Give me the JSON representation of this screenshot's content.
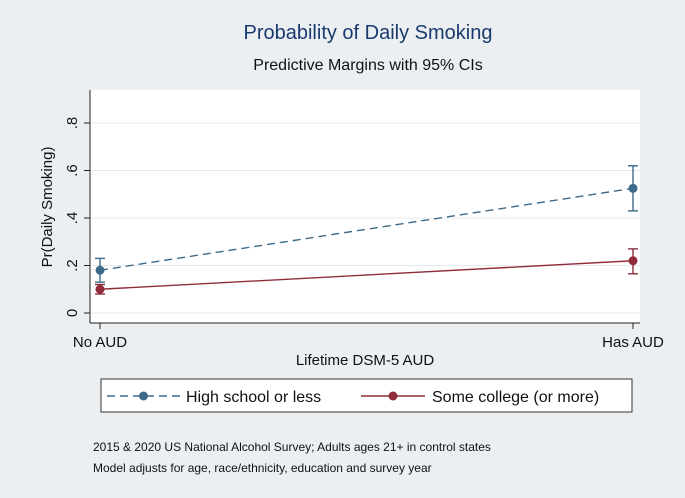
{
  "chart_data": {
    "type": "line",
    "title": "Probability of Daily Smoking",
    "subtitle": "Predictive Margins with 95% CIs",
    "xlabel": "Lifetime DSM-5 AUD",
    "ylabel": "Pr(Daily Smoking)",
    "categories": [
      "No AUD",
      "Has AUD"
    ],
    "ylim": [
      0,
      0.8
    ],
    "yticks": [
      0,
      0.2,
      0.4,
      0.6,
      0.8
    ],
    "ytick_labels": [
      "0",
      ".2",
      ".4",
      ".6",
      ".8"
    ],
    "grid": true,
    "legend_position": "bottom",
    "series": [
      {
        "name": "High school or less",
        "color": "#3e6a8a",
        "line_style": "dashed",
        "values": [
          0.18,
          0.525
        ],
        "ci_low": [
          0.13,
          0.43
        ],
        "ci_high": [
          0.23,
          0.62
        ]
      },
      {
        "name": "Some college (or more)",
        "color": "#8f2d3a",
        "line_style": "solid",
        "values": [
          0.1,
          0.22
        ],
        "ci_low": [
          0.08,
          0.165
        ],
        "ci_high": [
          0.12,
          0.27
        ]
      }
    ],
    "notes": [
      "2015 & 2020 US National Alcohol Survey; Adults ages 21+ in control states",
      "Model adjusts for age, race/ethnicity, education and survey year"
    ]
  }
}
